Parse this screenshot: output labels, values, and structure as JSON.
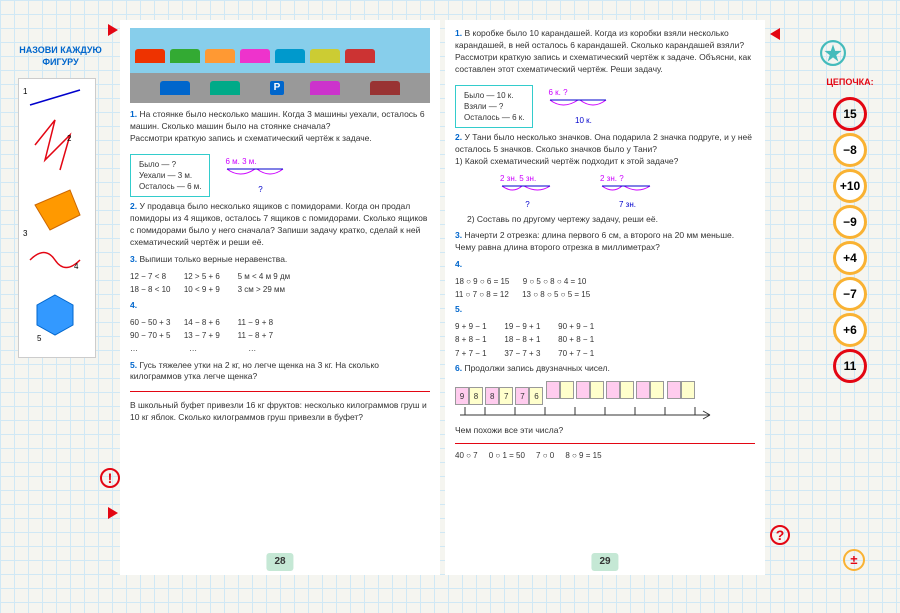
{
  "left_panel": {
    "title": "НАЗОВИ\nКАЖДУЮ\nФИГУРУ",
    "labels": [
      "1",
      "2",
      "3",
      "4",
      "5"
    ]
  },
  "right_panel": {
    "title": "ЦЕПОЧКА:",
    "bubbles": [
      {
        "val": "15",
        "cls": "red"
      },
      {
        "val": "−8",
        "cls": "yellow"
      },
      {
        "val": "+10",
        "cls": "yellow"
      },
      {
        "val": "−9",
        "cls": "yellow"
      },
      {
        "val": "+4",
        "cls": "yellow"
      },
      {
        "val": "−7",
        "cls": "yellow"
      },
      {
        "val": "+6",
        "cls": "yellow"
      },
      {
        "val": "11",
        "cls": "red"
      }
    ],
    "pm": "±"
  },
  "p28": {
    "t1": "1.",
    "t1_text": "На стоянке было несколько машин. Когда 3 машины уехали, осталось 6 машин. Сколько машин было на стоянке сначала?\nРассмотри краткую запись и схематический чертёж к задаче.",
    "box1_l1": "Было   — ?",
    "box1_l2": "Уехали — 3 м.",
    "box1_l3": "Осталось — 6 м.",
    "d1_top": "6 м.   3 м.",
    "d1_bot": "?",
    "t2": "2.",
    "t2_text": "У продавца было несколько ящиков с помидорами. Когда он продал помидоры из 4 ящиков, осталось 7 ящиков с помидорами. Сколько ящиков с помидорами было у него сначала? Запиши задачу кратко, сделай к ней схематический чертёж и реши её.",
    "t3": "3.",
    "t3_text": "Выпиши только верные неравенства.",
    "m3_r1": "12 − 7 < 8        12 > 5 + 6        5 м < 4 м 9 дм",
    "m3_r2": "18 − 8 < 10      10 < 9 + 9        3 см > 29 мм",
    "t4": "4.",
    "m4_r1": "60 − 50 + 3      14 − 8 + 6        11 − 9 + 8",
    "m4_r2": "90 − 70 + 5      13 − 7 + 9        11 − 8 + 7",
    "m4_r3": "…                       …                       …",
    "t5": "5.",
    "t5_text": "Гусь тяжелее утки на 2 кг, но легче щенка на 3 кг. На сколько килограммов утка легче щенка?",
    "footer": "В школьный буфет привезли 16 кг фруктов: несколько килограммов груш и 10 кг яблок. Сколько килограммов груш привезли в буфет?",
    "pg": "28"
  },
  "p29": {
    "t1": "1.",
    "t1_text": "В коробке было 10 карандашей. Когда из коробки взяли несколько карандашей, в ней осталось 6 карандашей. Сколько карандашей взяли? Рассмотри краткую запись и схематический чертёж к задаче. Объясни, как составлен этот схематический чертёж. Реши задачу.",
    "box1_l1": "Было     — 10 к.",
    "box1_l2": "Взяли    — ?",
    "box1_l3": "Осталось — 6 к.",
    "d1_top": "6 к.   ?",
    "d1_bot": "10 к.",
    "t2": "2.",
    "t2_text": "У Тани было несколько значков. Она подарила 2 значка подруге, и у неё осталось 5 значков. Сколько значков было у Тани?\n1) Какой схематический чертёж подходит к этой задаче?",
    "d2a_top": "2 зн. 5 зн.",
    "d2a_bot": "?",
    "d2b_top": "2 зн.  ?",
    "d2b_bot": "7 зн.",
    "t2_2": "2) Составь по другому чертежу задачу, реши её.",
    "t3": "3.",
    "t3_text": "Начерти 2 отрезка: длина первого 6 см, а второго на 20 мм меньше. Чему равна длина второго отрезка в миллиметрах?",
    "t4": "4.",
    "m4_r1": "18 ○ 9 ○ 6 = 15      9 ○ 5 ○ 8 ○ 4 = 10",
    "m4_r2": "11 ○ 7 ○ 8 = 12      13 ○ 8 ○ 5 ○ 5 = 15",
    "t5": "5.",
    "m5_r1": "9 + 9 − 1        19 − 9 + 1        90 + 9 − 1",
    "m5_r2": "8 + 8 − 1        18 − 8 + 1        80 + 8 − 1",
    "m5_r3": "7 + 7 − 1        37 − 7 + 3        70 + 7 − 1",
    "t6": "6.",
    "t6_text": "Продолжи запись двузначных чисел.",
    "nl_vals": [
      "9",
      "8",
      "8",
      "7",
      "7",
      "6"
    ],
    "nl_q": "Чем похожи все эти числа?",
    "footer": "40 ○ 7     0 ○ 1 = 50     7 ○ 0     8 ○ 9 = 15",
    "pg": "29"
  }
}
